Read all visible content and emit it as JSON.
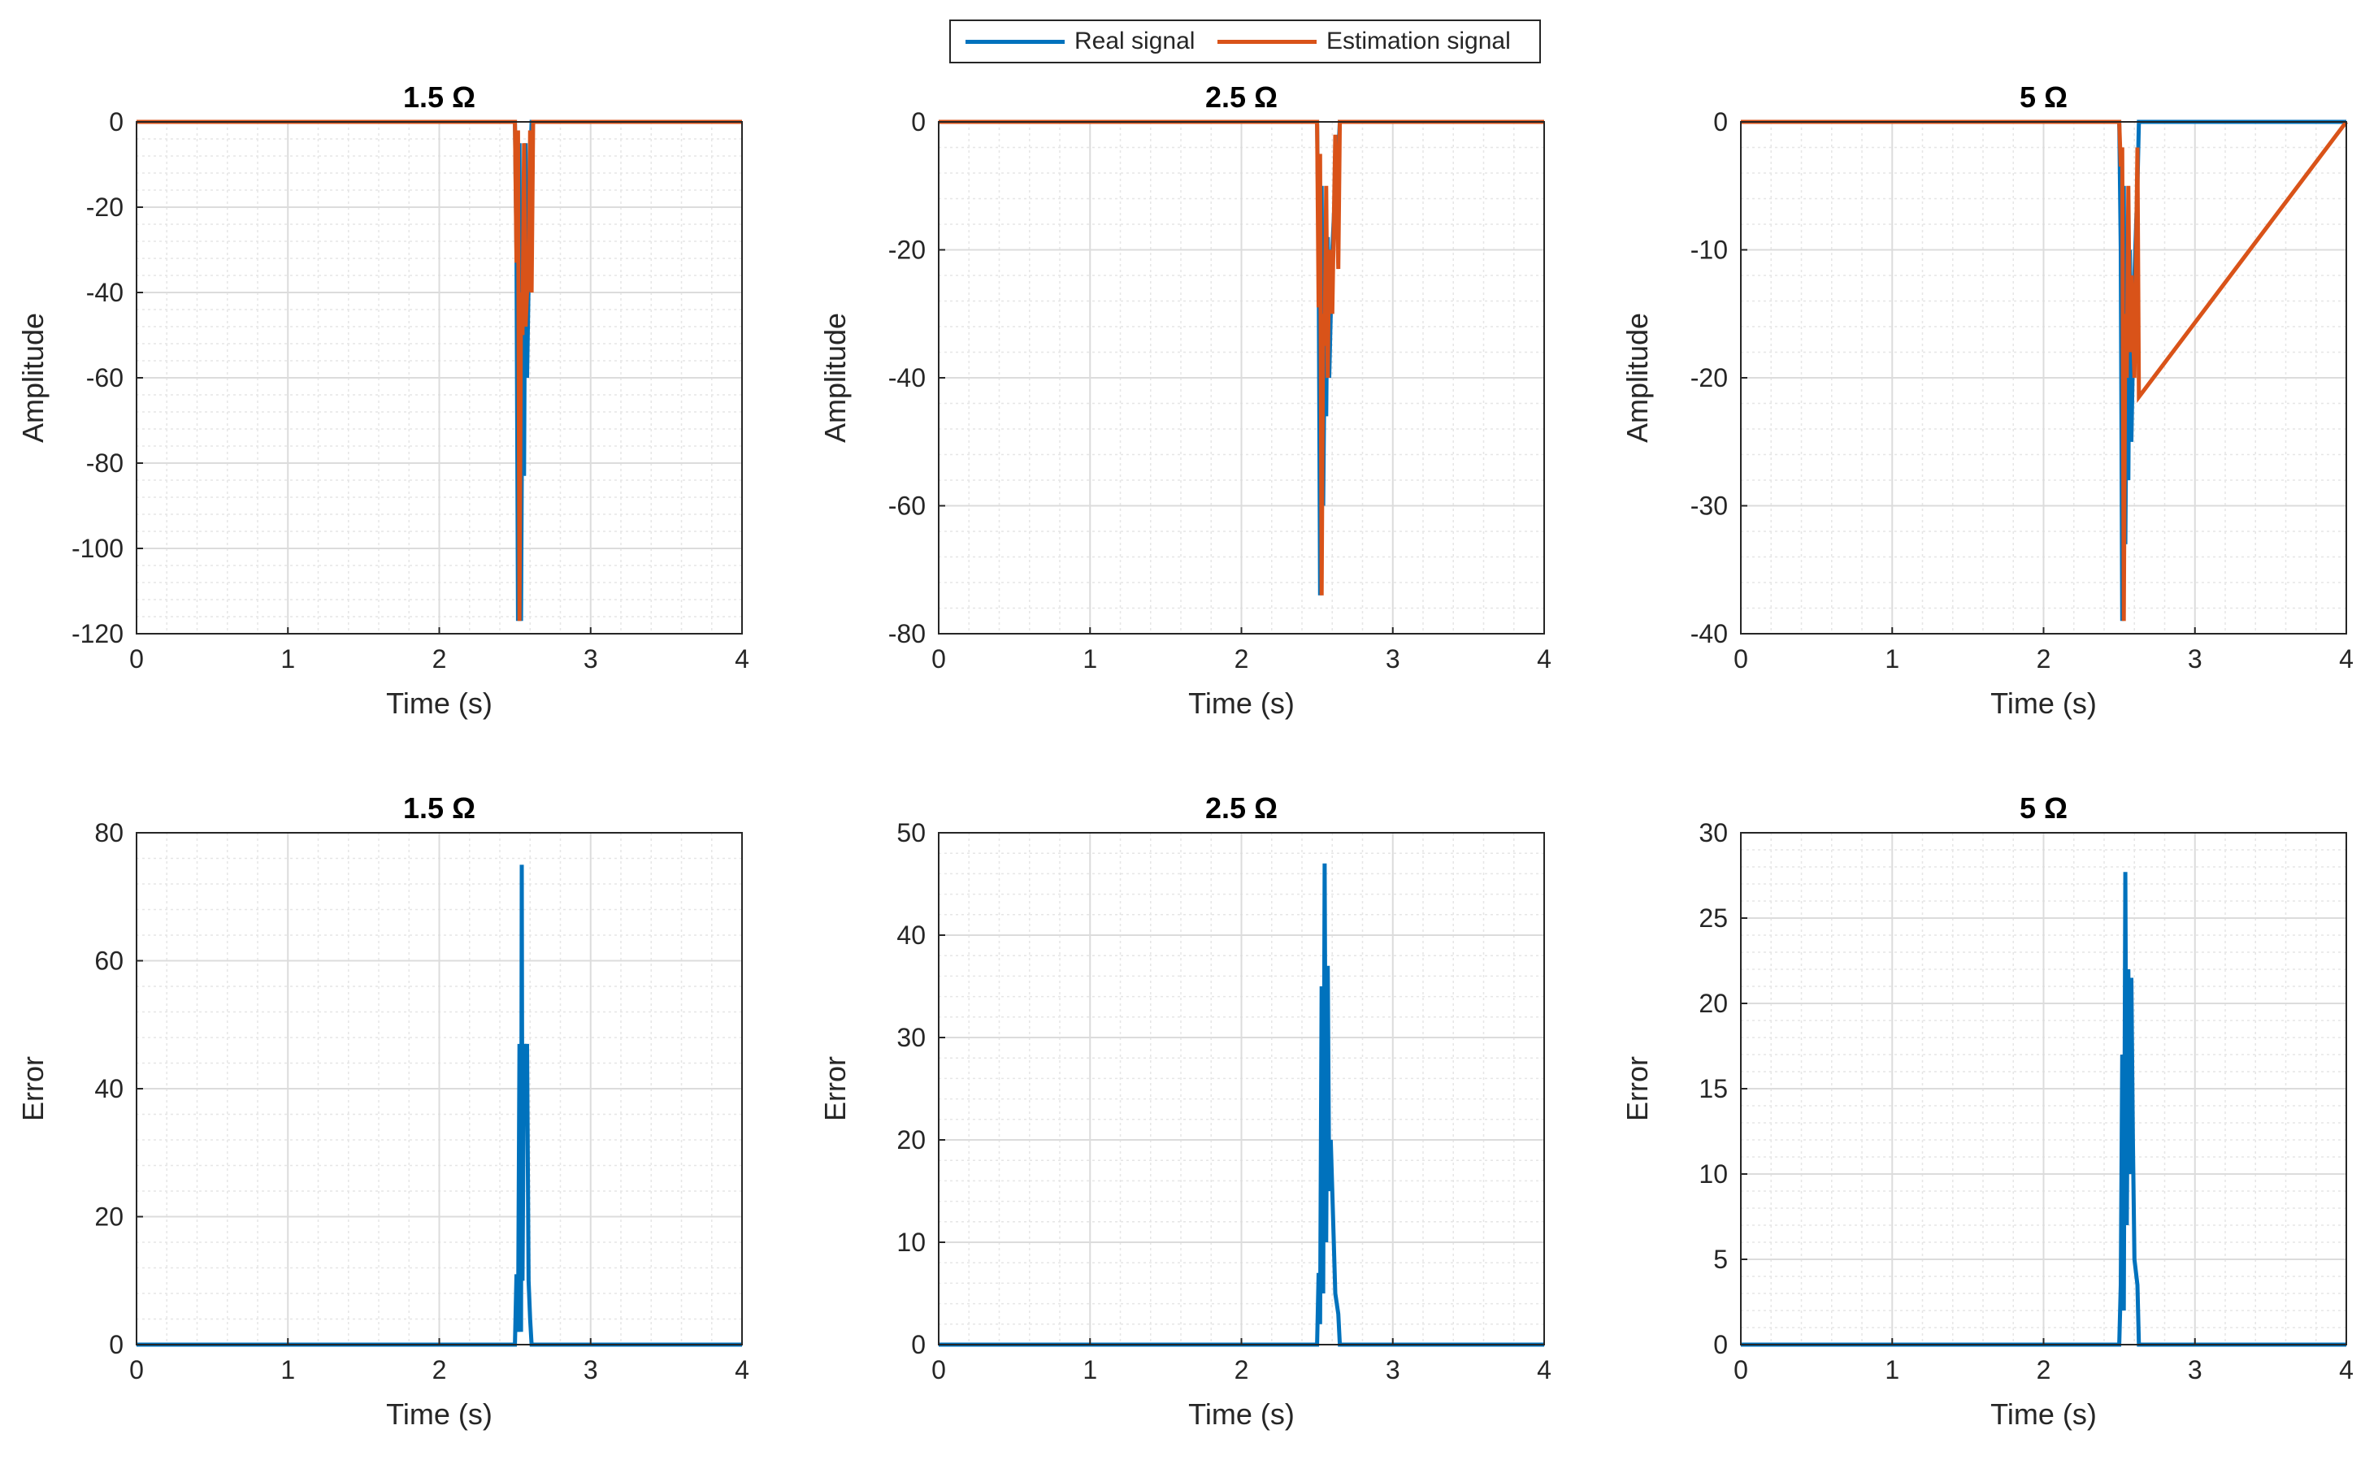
{
  "legend": {
    "entries": [
      {
        "label": "Real signal",
        "color": "#0072BD"
      },
      {
        "label": "Estimation signal",
        "color": "#D95319"
      }
    ]
  },
  "colors": {
    "real": "#0072BD",
    "estimation": "#D95319",
    "grid": "#dcdcdc",
    "axis": "#262626"
  },
  "chart_data": [
    {
      "type": "line",
      "row": "top",
      "title": "1.5 Ω",
      "xlabel": "Time (s)",
      "ylabel": "Amplitude",
      "xlim": [
        0,
        4
      ],
      "ylim": [
        -120,
        0
      ],
      "xticks": [
        0,
        1,
        2,
        3,
        4
      ],
      "yticks": [
        0,
        -20,
        -40,
        -60,
        -80,
        -100,
        -120
      ],
      "grid": true,
      "minor_grid": true,
      "series": [
        {
          "name": "Real signal",
          "x": [
            0,
            2.5,
            2.51,
            2.52,
            2.53,
            2.54,
            2.55,
            2.56,
            2.57,
            2.58,
            2.59,
            2.6,
            2.61,
            2.62,
            4
          ],
          "y": [
            0,
            0,
            -30,
            -117,
            -5,
            -117,
            -48,
            -83,
            -5,
            -60,
            -38,
            -10,
            0,
            0,
            0
          ]
        },
        {
          "name": "Estimation signal",
          "x": [
            0,
            2.5,
            2.51,
            2.52,
            2.53,
            2.54,
            2.55,
            2.56,
            2.57,
            2.58,
            2.59,
            2.6,
            2.61,
            2.62,
            4
          ],
          "y": [
            0,
            0,
            -33,
            -2,
            -117,
            -40,
            -50,
            -5,
            -48,
            -40,
            -38,
            -2,
            -40,
            0,
            0
          ]
        }
      ]
    },
    {
      "type": "line",
      "row": "top",
      "title": "2.5 Ω",
      "xlabel": "Time (s)",
      "ylabel": "Amplitude",
      "xlim": [
        0,
        4
      ],
      "ylim": [
        -80,
        0
      ],
      "xticks": [
        0,
        1,
        2,
        3,
        4
      ],
      "yticks": [
        0,
        -20,
        -40,
        -60,
        -80
      ],
      "grid": true,
      "minor_grid": true,
      "series": [
        {
          "name": "Real signal",
          "x": [
            0,
            2.5,
            2.51,
            2.52,
            2.53,
            2.54,
            2.55,
            2.56,
            2.57,
            2.58,
            2.6,
            2.62,
            2.64,
            2.65,
            4
          ],
          "y": [
            0,
            0,
            -20,
            -74,
            -10,
            -60,
            -35,
            -46,
            -18,
            -40,
            -20,
            -10,
            -5,
            0,
            0
          ]
        },
        {
          "name": "Estimation signal",
          "x": [
            0,
            2.5,
            2.51,
            2.52,
            2.53,
            2.54,
            2.55,
            2.56,
            2.57,
            2.58,
            2.6,
            2.62,
            2.64,
            2.65,
            4
          ],
          "y": [
            0,
            0,
            -29,
            -5,
            -74,
            -30,
            -35,
            -10,
            -40,
            -20,
            -30,
            -2,
            -23,
            0,
            0
          ]
        }
      ]
    },
    {
      "type": "line",
      "row": "top",
      "title": "5 Ω",
      "xlabel": "Time (s)",
      "ylabel": "Amplitude",
      "xlim": [
        0,
        4
      ],
      "ylim": [
        -40,
        0
      ],
      "xticks": [
        0,
        1,
        2,
        3,
        4
      ],
      "yticks": [
        0,
        -10,
        -20,
        -30,
        -40
      ],
      "grid": true,
      "minor_grid": true,
      "series": [
        {
          "name": "Real signal",
          "x": [
            0,
            2.5,
            2.51,
            2.52,
            2.53,
            2.54,
            2.55,
            2.56,
            2.57,
            2.58,
            2.6,
            2.62,
            2.63,
            4
          ],
          "y": [
            0,
            0,
            -10,
            -39,
            -5,
            -33,
            -17,
            -28,
            -10,
            -25,
            -12,
            -5,
            0,
            0
          ]
        },
        {
          "name": "Estimation signal",
          "x": [
            0,
            2.5,
            2.51,
            2.52,
            2.53,
            2.54,
            2.55,
            2.56,
            2.57,
            2.58,
            2.6,
            2.62,
            2.63,
            4
          ],
          "y": [
            0,
            0,
            -3.5,
            -2,
            -39,
            -15,
            -20,
            -5,
            -18,
            -12,
            -20,
            -2,
            -21.5,
            0
          ]
        }
      ]
    },
    {
      "type": "line",
      "row": "bottom",
      "title": "1.5 Ω",
      "xlabel": "Time (s)",
      "ylabel": "Error",
      "xlim": [
        0,
        4
      ],
      "ylim": [
        0,
        80
      ],
      "xticks": [
        0,
        1,
        2,
        3,
        4
      ],
      "yticks": [
        0,
        20,
        40,
        60,
        80
      ],
      "grid": true,
      "minor_grid": true,
      "series": [
        {
          "name": "Error",
          "x": [
            0,
            2.5,
            2.51,
            2.52,
            2.53,
            2.54,
            2.545,
            2.55,
            2.56,
            2.57,
            2.58,
            2.59,
            2.6,
            2.61,
            2.62,
            4
          ],
          "y": [
            0,
            0,
            11,
            2,
            47,
            2,
            75,
            10,
            47,
            41,
            47,
            10,
            4,
            0,
            0,
            0
          ]
        }
      ]
    },
    {
      "type": "line",
      "row": "bottom",
      "title": "2.5 Ω",
      "xlabel": "Time (s)",
      "ylabel": "Error",
      "xlim": [
        0,
        4
      ],
      "ylim": [
        0,
        50
      ],
      "xticks": [
        0,
        1,
        2,
        3,
        4
      ],
      "yticks": [
        0,
        10,
        20,
        30,
        40,
        50
      ],
      "grid": true,
      "minor_grid": true,
      "series": [
        {
          "name": "Error",
          "x": [
            0,
            2.5,
            2.51,
            2.52,
            2.53,
            2.54,
            2.55,
            2.56,
            2.57,
            2.58,
            2.59,
            2.6,
            2.62,
            2.64,
            2.65,
            4
          ],
          "y": [
            0,
            0,
            7,
            2,
            35,
            5,
            47,
            10,
            37,
            15,
            20,
            15,
            5,
            3,
            0,
            0
          ]
        }
      ]
    },
    {
      "type": "line",
      "row": "bottom",
      "title": "5 Ω",
      "xlabel": "Time (s)",
      "ylabel": "Error",
      "xlim": [
        0,
        4
      ],
      "ylim": [
        0,
        30
      ],
      "xticks": [
        0,
        1,
        2,
        3,
        4
      ],
      "yticks": [
        0,
        5,
        10,
        15,
        20,
        25,
        30
      ],
      "grid": true,
      "minor_grid": true,
      "series": [
        {
          "name": "Error",
          "x": [
            0,
            2.5,
            2.51,
            2.52,
            2.53,
            2.54,
            2.55,
            2.56,
            2.57,
            2.58,
            2.59,
            2.6,
            2.62,
            2.63,
            4
          ],
          "y": [
            0,
            0,
            3.5,
            17,
            2,
            27.7,
            7,
            22,
            10,
            21.5,
            12,
            5,
            3.5,
            0,
            0
          ]
        }
      ]
    }
  ]
}
